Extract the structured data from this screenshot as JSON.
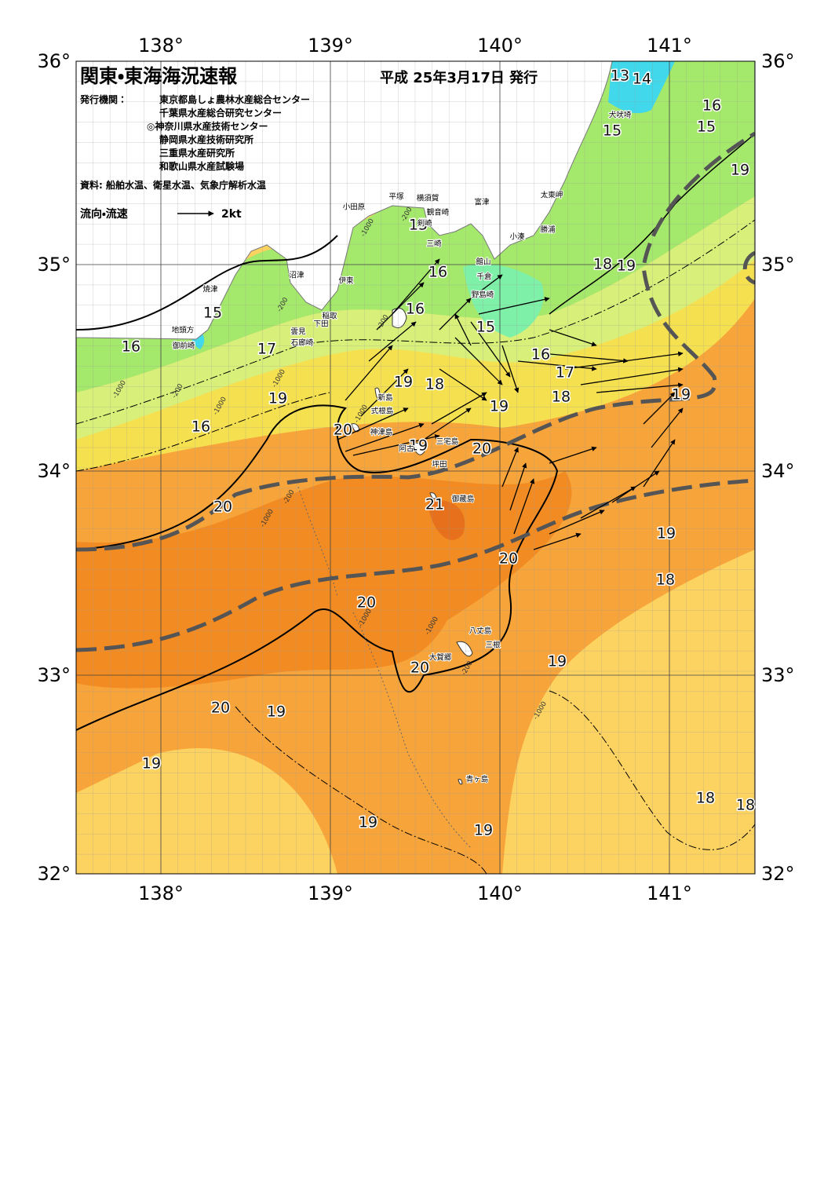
{
  "header": {
    "title": "関東・東海海況速報",
    "date": "平成 25年3月17日 発行"
  },
  "issuers": {
    "label": "発行機関：",
    "items": [
      "東京都島しょ農林水産総合センター",
      "千葉県水産総合研究センター",
      "◎神奈川県水産技術センター",
      "静岡県水産技術研究所",
      "三重県水産研究所",
      "和歌山県水産試験場"
    ]
  },
  "source": "資料: 船舶水温、衛星水温、気象庁解析水温",
  "legend": {
    "label": "流向・流速",
    "speed": "2kt"
  },
  "axes": {
    "lon": [
      "138°",
      "139°",
      "140°",
      "141°"
    ],
    "lat": [
      "36°",
      "35°",
      "34°",
      "33°",
      "32°"
    ]
  },
  "isotherms": [
    "13",
    "14",
    "16",
    "15",
    "15",
    "19",
    "15",
    "16",
    "18",
    "19",
    "15",
    "16",
    "15",
    "16",
    "17",
    "16",
    "17",
    "19",
    "18",
    "18",
    "19",
    "19",
    "19",
    "16",
    "20",
    "19",
    "20",
    "20",
    "21",
    "19",
    "20",
    "18",
    "20",
    "19",
    "20",
    "20",
    "19",
    "19",
    "18",
    "18",
    "19",
    "19"
  ],
  "depths": [
    "-200",
    "-1000",
    "-200",
    "-200",
    "-1000",
    "-1000",
    "-200",
    "-1000",
    "-1000",
    "-1000",
    "-200",
    "-1000",
    "-1000",
    "-1000",
    "-200"
  ],
  "places": [
    "犬吠埼",
    "太東岬",
    "勝浦",
    "小湊",
    "富津",
    "横須賀",
    "観音崎",
    "平塚",
    "小田原",
    "剣崎",
    "三崎",
    "館山",
    "千倉",
    "野島崎",
    "沼津",
    "伊東",
    "焼津",
    "稲取",
    "下田",
    "雲見",
    "石廊崎",
    "地頭方",
    "御前崎",
    "新島",
    "式根島",
    "神津島",
    "三宅島",
    "阿古",
    "坪田",
    "御蔵島",
    "八丈島",
    "三根",
    "大賀郷",
    "青ヶ島"
  ]
}
